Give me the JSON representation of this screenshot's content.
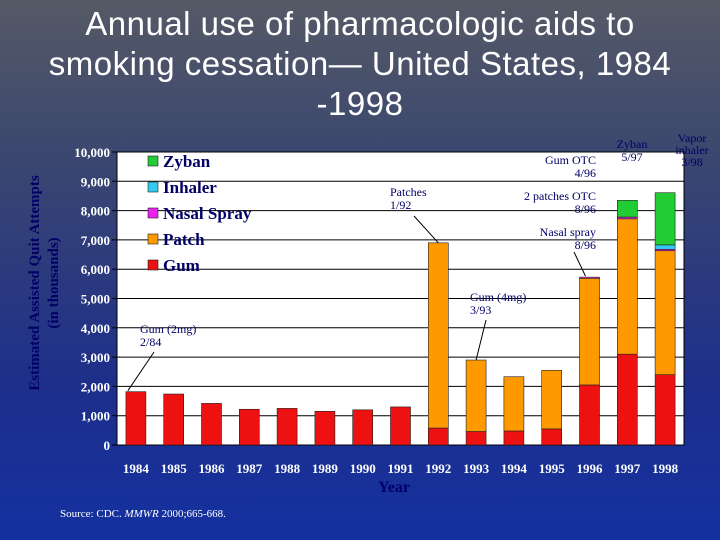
{
  "title": {
    "line1": "Annual use of pharmacologic aids to",
    "line2": "smoking cessation— United States, 1984",
    "line3": "-1998"
  },
  "source": {
    "prefix": "Source: CDC. ",
    "journal": "MMWR",
    "rest": " 2000;665-668."
  },
  "colors": {
    "zyban": "#22cc33",
    "inhaler": "#33ccee",
    "nasal_spray": "#ee22ee",
    "patch": "#ff9900",
    "gum": "#ee1111",
    "plot_bg": "#ffffff",
    "text_dark": "#000066"
  },
  "chart_data": {
    "type": "bar",
    "stacked": true,
    "title": "Annual use of pharmacologic aids to smoking cessation— United States, 1984 -1998",
    "xlabel": "Year",
    "ylabel": "Estimated Assisted Quit Attempts (in thousands)",
    "ylabel_line1": "Estimated Assisted Quit Attempts",
    "ylabel_line2": "(in thousands)",
    "ylim": [
      0,
      10000
    ],
    "yticks": [
      0,
      1000,
      2000,
      3000,
      4000,
      5000,
      6000,
      7000,
      8000,
      9000,
      10000
    ],
    "ytick_labels": [
      "0",
      "1,000",
      "2,000",
      "3,000",
      "4,000",
      "5,000",
      "6,000",
      "7,000",
      "8,000",
      "9,000",
      "10,000"
    ],
    "categories": [
      "1984",
      "1985",
      "1986",
      "1987",
      "1988",
      "1989",
      "1990",
      "1991",
      "1992",
      "1993",
      "1994",
      "1995",
      "1996",
      "1997",
      "1998"
    ],
    "series": [
      {
        "name": "Gum",
        "color": "#ee1111",
        "values": [
          1820,
          1740,
          1420,
          1220,
          1250,
          1150,
          1200,
          1300,
          580,
          460,
          480,
          550,
          2050,
          3100,
          2400
        ]
      },
      {
        "name": "Patch",
        "color": "#ff9900",
        "values": [
          0,
          0,
          0,
          0,
          0,
          0,
          0,
          0,
          6320,
          2440,
          1850,
          2000,
          3640,
          4620,
          4230
        ]
      },
      {
        "name": "Nasal Spray",
        "color": "#ee22ee",
        "values": [
          0,
          0,
          0,
          0,
          0,
          0,
          0,
          0,
          0,
          0,
          0,
          0,
          40,
          60,
          50
        ]
      },
      {
        "name": "Inhaler",
        "color": "#33ccee",
        "values": [
          0,
          0,
          0,
          0,
          0,
          0,
          0,
          0,
          0,
          0,
          0,
          0,
          0,
          0,
          150
        ]
      },
      {
        "name": "Zyban",
        "color": "#22cc33",
        "values": [
          0,
          0,
          0,
          0,
          0,
          0,
          0,
          0,
          0,
          0,
          0,
          0,
          0,
          570,
          1780
        ]
      }
    ],
    "legend": {
      "placement": "top-left",
      "entries": [
        "Zyban",
        "Inhaler",
        "Nasal Spray",
        "Patch",
        "Gum"
      ]
    },
    "annotations": [
      {
        "id": "gum2mg",
        "text_lines": [
          "Gum (2mg)",
          "2/84"
        ],
        "category": "1984",
        "value": 1820
      },
      {
        "id": "patches",
        "text_lines": [
          "Patches",
          "1/92"
        ],
        "category": "1992",
        "value": 6900
      },
      {
        "id": "gum4mg",
        "text_lines": [
          "Gum (4mg)",
          "3/93"
        ],
        "category": "1993",
        "value": 2900
      },
      {
        "id": "gumotc",
        "text_lines": [
          "Gum OTC",
          "4/96"
        ],
        "category": "1996",
        "value": null
      },
      {
        "id": "patchesotc",
        "text_lines": [
          "2 patches OTC",
          "8/96"
        ],
        "category": "1996",
        "value": null
      },
      {
        "id": "nasal",
        "text_lines": [
          "Nasal spray",
          "8/96"
        ],
        "category": "1996",
        "value": null
      },
      {
        "id": "zyban",
        "text_lines": [
          "Zyban",
          "5/97"
        ],
        "category": "1997",
        "value": null
      },
      {
        "id": "vapor",
        "text_lines": [
          "Vapor",
          "inhaler",
          "3/98"
        ],
        "category": "1998",
        "value": null
      }
    ]
  }
}
